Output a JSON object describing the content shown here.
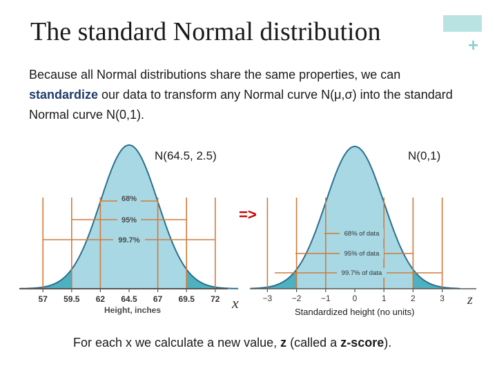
{
  "title": "The standard Normal distribution",
  "intro": {
    "part1": "Because all Normal distributions share the same properties, we can ",
    "keyword": "standardize",
    "part2": " our data to transform any Normal curve N(μ,σ) into the standard Normal curve N(0,1)."
  },
  "left_chart": {
    "label": "N(64.5, 2.5)",
    "tick_labels": [
      "57",
      "59.5",
      "62",
      "64.5",
      "67",
      "69.5",
      "72"
    ],
    "xlabel": "Height, inches",
    "axis_var": "x",
    "percent_labels": [
      "68%",
      "95%",
      "99.7%"
    ]
  },
  "arrow": "=>",
  "right_chart": {
    "label": "N(0,1)",
    "tick_labels": [
      "−3",
      "−2",
      "−1",
      "0",
      "1",
      "2",
      "3"
    ],
    "xlabel": "Standardized height (no units)",
    "axis_var": "z",
    "percent_labels": [
      "68% of data",
      "95% of data",
      "99.7% of data"
    ]
  },
  "bottom": {
    "part1": "For each x we calculate a new value, ",
    "z": "z",
    "part2": " (called a ",
    "zscore": "z-score",
    "part3": ")."
  },
  "colors": {
    "fill_light": "#a8d8e4",
    "fill_dark": "#4fb0c0",
    "curve": "#2a6f8f",
    "lines": "#d07a3a",
    "accent_text": "#1f3d6b",
    "arrow": "#cc0000"
  }
}
